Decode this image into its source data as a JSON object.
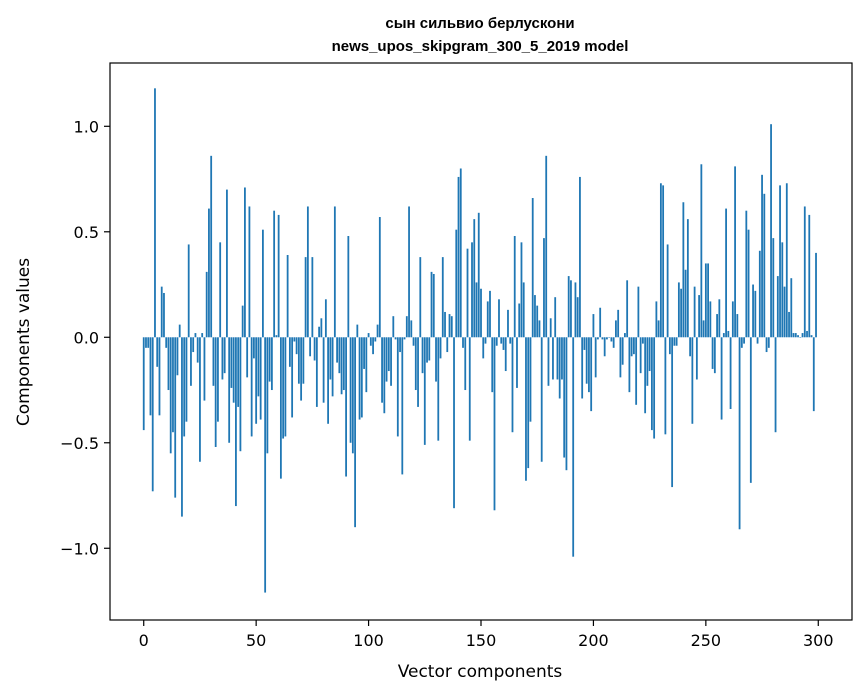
{
  "chart_data": {
    "type": "bar",
    "title_line1": "сын сильвио берлускони",
    "title_line2": "news_upos_skipgram_300_5_2019 model",
    "xlabel": "Vector components",
    "ylabel": "Components values",
    "xlim": [
      -15,
      315
    ],
    "ylim": [
      -1.34,
      1.3
    ],
    "xticks": [
      0,
      50,
      100,
      150,
      200,
      250,
      300
    ],
    "xtick_labels": [
      "0",
      "50",
      "100",
      "150",
      "200",
      "250",
      "300"
    ],
    "yticks": [
      1.0,
      0.5,
      0.0,
      -0.5,
      -1.0
    ],
    "ytick_labels": [
      "1.0",
      "0.5",
      "0.0",
      "−0.5",
      "−1.0"
    ],
    "grid": false,
    "bar_color": "#1f77b4",
    "x": [
      0,
      1,
      2,
      3,
      4,
      5,
      6,
      7,
      8,
      9,
      10,
      11,
      12,
      13,
      14,
      15,
      16,
      17,
      18,
      19,
      20,
      21,
      22,
      23,
      24,
      25,
      26,
      27,
      28,
      29,
      30,
      31,
      32,
      33,
      34,
      35,
      36,
      37,
      38,
      39,
      40,
      41,
      42,
      43,
      44,
      45,
      46,
      47,
      48,
      49,
      50,
      51,
      52,
      53,
      54,
      55,
      56,
      57,
      58,
      59,
      60,
      61,
      62,
      63,
      64,
      65,
      66,
      67,
      68,
      69,
      70,
      71,
      72,
      73,
      74,
      75,
      76,
      77,
      78,
      79,
      80,
      81,
      82,
      83,
      84,
      85,
      86,
      87,
      88,
      89,
      90,
      91,
      92,
      93,
      94,
      95,
      96,
      97,
      98,
      99,
      100,
      101,
      102,
      103,
      104,
      105,
      106,
      107,
      108,
      109,
      110,
      111,
      112,
      113,
      114,
      115,
      116,
      117,
      118,
      119,
      120,
      121,
      122,
      123,
      124,
      125,
      126,
      127,
      128,
      129,
      130,
      131,
      132,
      133,
      134,
      135,
      136,
      137,
      138,
      139,
      140,
      141,
      142,
      143,
      144,
      145,
      146,
      147,
      148,
      149,
      150,
      151,
      152,
      153,
      154,
      155,
      156,
      157,
      158,
      159,
      160,
      161,
      162,
      163,
      164,
      165,
      166,
      167,
      168,
      169,
      170,
      171,
      172,
      173,
      174,
      175,
      176,
      177,
      178,
      179,
      180,
      181,
      182,
      183,
      184,
      185,
      186,
      187,
      188,
      189,
      190,
      191,
      192,
      193,
      194,
      195,
      196,
      197,
      198,
      199,
      200,
      201,
      202,
      203,
      204,
      205,
      206,
      207,
      208,
      209,
      210,
      211,
      212,
      213,
      214,
      215,
      216,
      217,
      218,
      219,
      220,
      221,
      222,
      223,
      224,
      225,
      226,
      227,
      228,
      229,
      230,
      231,
      232,
      233,
      234,
      235,
      236,
      237,
      238,
      239,
      240,
      241,
      242,
      243,
      244,
      245,
      246,
      247,
      248,
      249,
      250,
      251,
      252,
      253,
      254,
      255,
      256,
      257,
      258,
      259,
      260,
      261,
      262,
      263,
      264,
      265,
      266,
      267,
      268,
      269,
      270,
      271,
      272,
      273,
      274,
      275,
      276,
      277,
      278,
      279,
      280,
      281,
      282,
      283,
      284,
      285,
      286,
      287,
      288,
      289,
      290,
      291,
      292,
      293,
      294,
      295,
      296,
      297,
      298,
      299
    ],
    "values": [
      -0.44,
      -0.05,
      -0.05,
      -0.37,
      -0.73,
      1.18,
      -0.14,
      -0.37,
      0.24,
      0.21,
      -0.05,
      -0.25,
      -0.55,
      -0.45,
      -0.76,
      -0.18,
      0.06,
      -0.85,
      -0.47,
      -0.4,
      0.44,
      -0.23,
      -0.07,
      0.02,
      -0.12,
      -0.59,
      0.02,
      -0.3,
      0.31,
      0.61,
      0.86,
      -0.23,
      -0.52,
      -0.4,
      0.45,
      -0.2,
      -0.17,
      0.7,
      -0.5,
      -0.24,
      -0.31,
      -0.8,
      -0.33,
      -0.54,
      0.15,
      0.71,
      -0.19,
      0.62,
      -0.47,
      -0.1,
      -0.41,
      -0.28,
      -0.39,
      0.51,
      -1.21,
      -0.55,
      -0.21,
      -0.25,
      0.6,
      0.01,
      0.58,
      -0.67,
      -0.48,
      -0.47,
      0.39,
      -0.14,
      -0.38,
      -0.02,
      -0.08,
      -0.22,
      -0.3,
      -0.22,
      0.38,
      0.62,
      -0.09,
      0.38,
      -0.11,
      -0.33,
      0.05,
      0.09,
      -0.31,
      0.18,
      -0.41,
      -0.2,
      -0.28,
      0.62,
      -0.12,
      -0.17,
      -0.27,
      -0.25,
      -0.66,
      0.48,
      -0.5,
      -0.55,
      -0.9,
      0.06,
      -0.39,
      -0.38,
      -0.15,
      -0.26,
      0.02,
      -0.04,
      -0.08,
      -0.02,
      0.06,
      0.57,
      -0.31,
      -0.36,
      -0.21,
      -0.16,
      -0.23,
      0.1,
      -0.01,
      -0.47,
      -0.07,
      -0.65,
      -0.01,
      0.1,
      0.62,
      0.08,
      -0.04,
      -0.25,
      -0.33,
      0.38,
      -0.17,
      -0.51,
      -0.12,
      -0.11,
      0.31,
      0.3,
      -0.21,
      -0.49,
      -0.1,
      0.38,
      0.12,
      -0.07,
      0.11,
      0.1,
      -0.81,
      0.51,
      0.76,
      0.8,
      -0.05,
      -0.25,
      0.42,
      -0.49,
      0.45,
      0.56,
      0.26,
      0.59,
      0.23,
      -0.1,
      -0.03,
      0.17,
      0.22,
      -0.26,
      -0.82,
      -0.04,
      0.18,
      -0.03,
      -0.06,
      -0.16,
      0.13,
      -0.03,
      -0.45,
      0.48,
      -0.24,
      0.16,
      0.45,
      0.26,
      -0.68,
      -0.62,
      -0.4,
      0.66,
      0.2,
      0.15,
      0.08,
      -0.59,
      0.47,
      0.86,
      -0.23,
      0.09,
      -0.2,
      0.19,
      -0.2,
      -0.29,
      -0.2,
      -0.57,
      -0.63,
      0.29,
      0.27,
      -1.04,
      0.26,
      0.19,
      0.76,
      -0.29,
      -0.06,
      -0.22,
      -0.26,
      -0.35,
      0.11,
      -0.19,
      -0.01,
      0.14,
      -0.01,
      -0.09,
      -0.01,
      0.0,
      -0.02,
      -0.05,
      0.08,
      0.13,
      -0.19,
      -0.13,
      0.02,
      0.27,
      -0.26,
      -0.09,
      -0.08,
      -0.32,
      0.24,
      -0.17,
      -0.03,
      -0.36,
      -0.23,
      -0.16,
      -0.44,
      -0.48,
      0.17,
      0.08,
      0.73,
      0.72,
      -0.46,
      0.44,
      -0.08,
      -0.71,
      -0.04,
      -0.04,
      0.26,
      0.23,
      0.64,
      0.32,
      0.56,
      -0.09,
      -0.41,
      0.24,
      -0.2,
      0.2,
      0.82,
      0.08,
      0.35,
      0.35,
      0.17,
      -0.15,
      -0.17,
      0.11,
      0.18,
      -0.39,
      0.02,
      0.61,
      0.03,
      -0.34,
      0.17,
      0.81,
      0.11,
      -0.91,
      -0.05,
      -0.03,
      0.6,
      0.51,
      -0.69,
      0.25,
      0.22,
      -0.03,
      0.41,
      0.77,
      0.68,
      -0.07,
      -0.05,
      1.01,
      0.47,
      -0.45,
      0.29,
      0.72,
      0.45,
      0.24,
      0.73,
      0.12,
      0.28,
      0.02,
      0.02,
      0.01,
      0.0,
      0.02,
      0.62,
      0.03,
      0.58,
      0.01,
      -0.35,
      0.4
    ]
  }
}
